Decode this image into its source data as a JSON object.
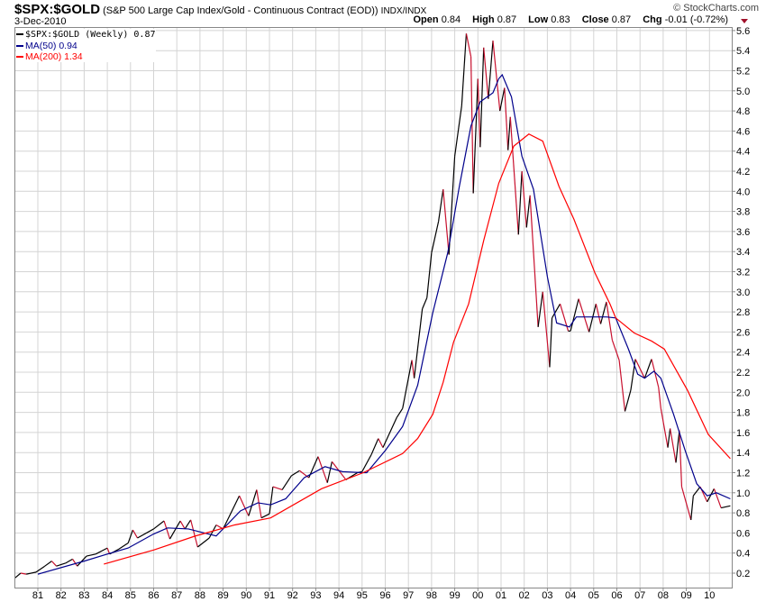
{
  "header": {
    "symbol": "$SPX:$GOLD",
    "description": "(S&P 500 Large Cap Index/Gold - Continuous Contract (EOD))",
    "exchange": "INDX/INDX",
    "date": "3-Dec-2010",
    "brand": "© StockCharts.com",
    "open_label": "Open",
    "open": "0.84",
    "high_label": "High",
    "high": "0.87",
    "low_label": "Low",
    "low": "0.83",
    "close_label": "Close",
    "close": "0.87",
    "chg_label": "Chg",
    "chg": "-0.01 (-0.72%)",
    "chg_direction": "down"
  },
  "legend": [
    {
      "label": "$SPX:$GOLD (Weekly) 0.87",
      "color": "#000000"
    },
    {
      "label": "MA(50) 0.94",
      "color": "#00008b"
    },
    {
      "label": "MA(200) 1.34",
      "color": "#ff0000"
    }
  ],
  "chart_data": {
    "type": "line",
    "xlabel": "",
    "ylabel": "",
    "xlim": [
      1980.0,
      2010.93
    ],
    "ylim": [
      0.1,
      5.65
    ],
    "grid": true,
    "legend_position": "top-left",
    "y_axis_side": "right",
    "x_ticks": [
      {
        "year": 1981,
        "label": "81"
      },
      {
        "year": 1982,
        "label": "82"
      },
      {
        "year": 1983,
        "label": "83"
      },
      {
        "year": 1984,
        "label": "84"
      },
      {
        "year": 1985,
        "label": "85"
      },
      {
        "year": 1986,
        "label": "86"
      },
      {
        "year": 1987,
        "label": "87"
      },
      {
        "year": 1988,
        "label": "88"
      },
      {
        "year": 1989,
        "label": "89"
      },
      {
        "year": 1990,
        "label": "90"
      },
      {
        "year": 1991,
        "label": "91"
      },
      {
        "year": 1992,
        "label": "92"
      },
      {
        "year": 1993,
        "label": "93"
      },
      {
        "year": 1994,
        "label": "94"
      },
      {
        "year": 1995,
        "label": "95"
      },
      {
        "year": 1996,
        "label": "96"
      },
      {
        "year": 1997,
        "label": "97"
      },
      {
        "year": 1998,
        "label": "98"
      },
      {
        "year": 1999,
        "label": "99"
      },
      {
        "year": 2000,
        "label": "00"
      },
      {
        "year": 2001,
        "label": "01"
      },
      {
        "year": 2002,
        "label": "02"
      },
      {
        "year": 2003,
        "label": "03"
      },
      {
        "year": 2004,
        "label": "04"
      },
      {
        "year": 2005,
        "label": "05"
      },
      {
        "year": 2006,
        "label": "06"
      },
      {
        "year": 2007,
        "label": "07"
      },
      {
        "year": 2008,
        "label": "08"
      },
      {
        "year": 2009,
        "label": "09"
      },
      {
        "year": 2010,
        "label": "10"
      }
    ],
    "y_ticks": [
      "0.2",
      "0.4",
      "0.6",
      "0.8",
      "1.0",
      "1.2",
      "1.4",
      "1.6",
      "1.8",
      "2.0",
      "2.2",
      "2.4",
      "2.6",
      "2.8",
      "3.0",
      "3.2",
      "3.4",
      "3.6",
      "3.8",
      "4.0",
      "4.2",
      "4.4",
      "4.6",
      "4.8",
      "5.0",
      "5.2",
      "5.4",
      "5.6"
    ],
    "series": [
      {
        "name": "$SPX:$GOLD (Weekly)",
        "color": "#000000",
        "down_color": "#c8102e",
        "points": [
          [
            1980.0,
            0.15
          ],
          [
            1980.26,
            0.2
          ],
          [
            1980.5,
            0.19
          ],
          [
            1980.92,
            0.21
          ],
          [
            1981.3,
            0.27
          ],
          [
            1981.6,
            0.32
          ],
          [
            1981.8,
            0.27
          ],
          [
            1982.2,
            0.3
          ],
          [
            1982.5,
            0.34
          ],
          [
            1982.7,
            0.27
          ],
          [
            1983.1,
            0.37
          ],
          [
            1983.5,
            0.39
          ],
          [
            1984.0,
            0.45
          ],
          [
            1984.1,
            0.39
          ],
          [
            1984.5,
            0.44
          ],
          [
            1984.9,
            0.5
          ],
          [
            1985.1,
            0.63
          ],
          [
            1985.3,
            0.55
          ],
          [
            1986.0,
            0.64
          ],
          [
            1986.45,
            0.72
          ],
          [
            1986.7,
            0.54
          ],
          [
            1987.15,
            0.72
          ],
          [
            1987.35,
            0.64
          ],
          [
            1987.6,
            0.73
          ],
          [
            1987.9,
            0.46
          ],
          [
            1988.4,
            0.55
          ],
          [
            1988.7,
            0.68
          ],
          [
            1989.0,
            0.64
          ],
          [
            1989.7,
            0.97
          ],
          [
            1990.1,
            0.77
          ],
          [
            1990.45,
            1.03
          ],
          [
            1990.65,
            0.75
          ],
          [
            1991.0,
            0.79
          ],
          [
            1991.15,
            1.06
          ],
          [
            1991.55,
            1.03
          ],
          [
            1991.95,
            1.17
          ],
          [
            1992.3,
            1.22
          ],
          [
            1992.7,
            1.15
          ],
          [
            1993.1,
            1.36
          ],
          [
            1993.5,
            1.1
          ],
          [
            1993.7,
            1.31
          ],
          [
            1994.3,
            1.13
          ],
          [
            1994.8,
            1.2
          ],
          [
            1995.0,
            1.21
          ],
          [
            1995.4,
            1.38
          ],
          [
            1995.7,
            1.54
          ],
          [
            1995.9,
            1.45
          ],
          [
            1996.5,
            1.75
          ],
          [
            1996.75,
            1.84
          ],
          [
            1997.15,
            2.32
          ],
          [
            1997.25,
            2.14
          ],
          [
            1997.6,
            2.83
          ],
          [
            1997.8,
            2.94
          ],
          [
            1998.0,
            3.39
          ],
          [
            1998.3,
            3.7
          ],
          [
            1998.5,
            4.02
          ],
          [
            1998.75,
            3.37
          ],
          [
            1999.0,
            4.35
          ],
          [
            1999.3,
            4.85
          ],
          [
            1999.5,
            5.57
          ],
          [
            1999.7,
            5.34
          ],
          [
            1999.8,
            3.98
          ],
          [
            2000.0,
            5.12
          ],
          [
            2000.1,
            4.44
          ],
          [
            2000.25,
            5.43
          ],
          [
            2000.45,
            4.92
          ],
          [
            2000.65,
            5.5
          ],
          [
            2000.95,
            4.8
          ],
          [
            2001.15,
            5.03
          ],
          [
            2001.3,
            4.41
          ],
          [
            2001.4,
            4.74
          ],
          [
            2001.75,
            3.57
          ],
          [
            2001.9,
            4.2
          ],
          [
            2002.1,
            3.64
          ],
          [
            2002.25,
            3.96
          ],
          [
            2002.6,
            2.65
          ],
          [
            2002.8,
            3.0
          ],
          [
            2003.1,
            2.25
          ],
          [
            2003.2,
            2.74
          ],
          [
            2003.55,
            2.88
          ],
          [
            2003.9,
            2.61
          ],
          [
            2004.0,
            2.61
          ],
          [
            2004.35,
            2.93
          ],
          [
            2004.8,
            2.6
          ],
          [
            2005.1,
            2.88
          ],
          [
            2005.3,
            2.68
          ],
          [
            2005.55,
            2.9
          ],
          [
            2005.8,
            2.52
          ],
          [
            2006.1,
            2.32
          ],
          [
            2006.35,
            1.81
          ],
          [
            2006.6,
            2.02
          ],
          [
            2006.8,
            2.33
          ],
          [
            2007.2,
            2.14
          ],
          [
            2007.5,
            2.33
          ],
          [
            2007.8,
            2.05
          ],
          [
            2007.9,
            1.84
          ],
          [
            2008.2,
            1.45
          ],
          [
            2008.3,
            1.64
          ],
          [
            2008.55,
            1.3
          ],
          [
            2008.7,
            1.62
          ],
          [
            2008.8,
            1.06
          ],
          [
            2009.2,
            0.73
          ],
          [
            2009.3,
            0.97
          ],
          [
            2009.6,
            1.06
          ],
          [
            2009.9,
            0.91
          ],
          [
            2010.2,
            1.04
          ],
          [
            2010.5,
            0.85
          ],
          [
            2010.9,
            0.87
          ]
        ]
      },
      {
        "name": "MA(50)",
        "color": "#00008b",
        "points": [
          [
            1981.0,
            0.19
          ],
          [
            1983.0,
            0.32
          ],
          [
            1984.0,
            0.39
          ],
          [
            1984.9,
            0.45
          ],
          [
            1986.0,
            0.59
          ],
          [
            1986.6,
            0.65
          ],
          [
            1987.5,
            0.64
          ],
          [
            1988.7,
            0.57
          ],
          [
            1989.75,
            0.82
          ],
          [
            1990.5,
            0.9
          ],
          [
            1991.05,
            0.88
          ],
          [
            1991.7,
            0.94
          ],
          [
            1992.5,
            1.15
          ],
          [
            1993.4,
            1.26
          ],
          [
            1994.15,
            1.21
          ],
          [
            1995.05,
            1.2
          ],
          [
            1995.2,
            1.2
          ],
          [
            1996.0,
            1.42
          ],
          [
            1996.75,
            1.66
          ],
          [
            1997.4,
            2.07
          ],
          [
            1998.05,
            2.79
          ],
          [
            1998.7,
            3.39
          ],
          [
            1999.2,
            4.05
          ],
          [
            1999.7,
            4.65
          ],
          [
            2000.1,
            4.89
          ],
          [
            2000.65,
            4.98
          ],
          [
            2000.9,
            5.12
          ],
          [
            2001.05,
            5.16
          ],
          [
            2001.45,
            4.94
          ],
          [
            2001.9,
            4.35
          ],
          [
            2002.4,
            4.02
          ],
          [
            2003.0,
            3.15
          ],
          [
            2003.4,
            2.69
          ],
          [
            2003.95,
            2.65
          ],
          [
            2004.25,
            2.75
          ],
          [
            2005.55,
            2.75
          ],
          [
            2005.95,
            2.74
          ],
          [
            2006.5,
            2.43
          ],
          [
            2006.9,
            2.18
          ],
          [
            2007.2,
            2.14
          ],
          [
            2007.6,
            2.21
          ],
          [
            2007.9,
            2.14
          ],
          [
            2008.45,
            1.78
          ],
          [
            2008.95,
            1.42
          ],
          [
            2009.45,
            1.09
          ],
          [
            2009.9,
            0.97
          ],
          [
            2010.3,
            1.0
          ],
          [
            2010.9,
            0.94
          ]
        ]
      },
      {
        "name": "MA(200)",
        "color": "#ff0000",
        "points": [
          [
            1983.85,
            0.29
          ],
          [
            1986.0,
            0.43
          ],
          [
            1987.8,
            0.57
          ],
          [
            1989.5,
            0.68
          ],
          [
            1991.05,
            0.75
          ],
          [
            1993.25,
            1.04
          ],
          [
            1995.05,
            1.2
          ],
          [
            1996.75,
            1.39
          ],
          [
            1997.4,
            1.54
          ],
          [
            1998.05,
            1.78
          ],
          [
            1998.5,
            2.1
          ],
          [
            1998.95,
            2.5
          ],
          [
            1999.6,
            2.88
          ],
          [
            2000.25,
            3.51
          ],
          [
            2000.9,
            4.08
          ],
          [
            2001.55,
            4.45
          ],
          [
            2002.2,
            4.57
          ],
          [
            2002.8,
            4.5
          ],
          [
            2003.5,
            4.05
          ],
          [
            2004.15,
            3.72
          ],
          [
            2005.05,
            3.19
          ],
          [
            2005.7,
            2.88
          ],
          [
            2005.95,
            2.74
          ],
          [
            2006.75,
            2.59
          ],
          [
            2007.5,
            2.51
          ],
          [
            2008.05,
            2.43
          ],
          [
            2009.05,
            2.02
          ],
          [
            2009.95,
            1.58
          ],
          [
            2010.9,
            1.34
          ]
        ]
      }
    ]
  }
}
